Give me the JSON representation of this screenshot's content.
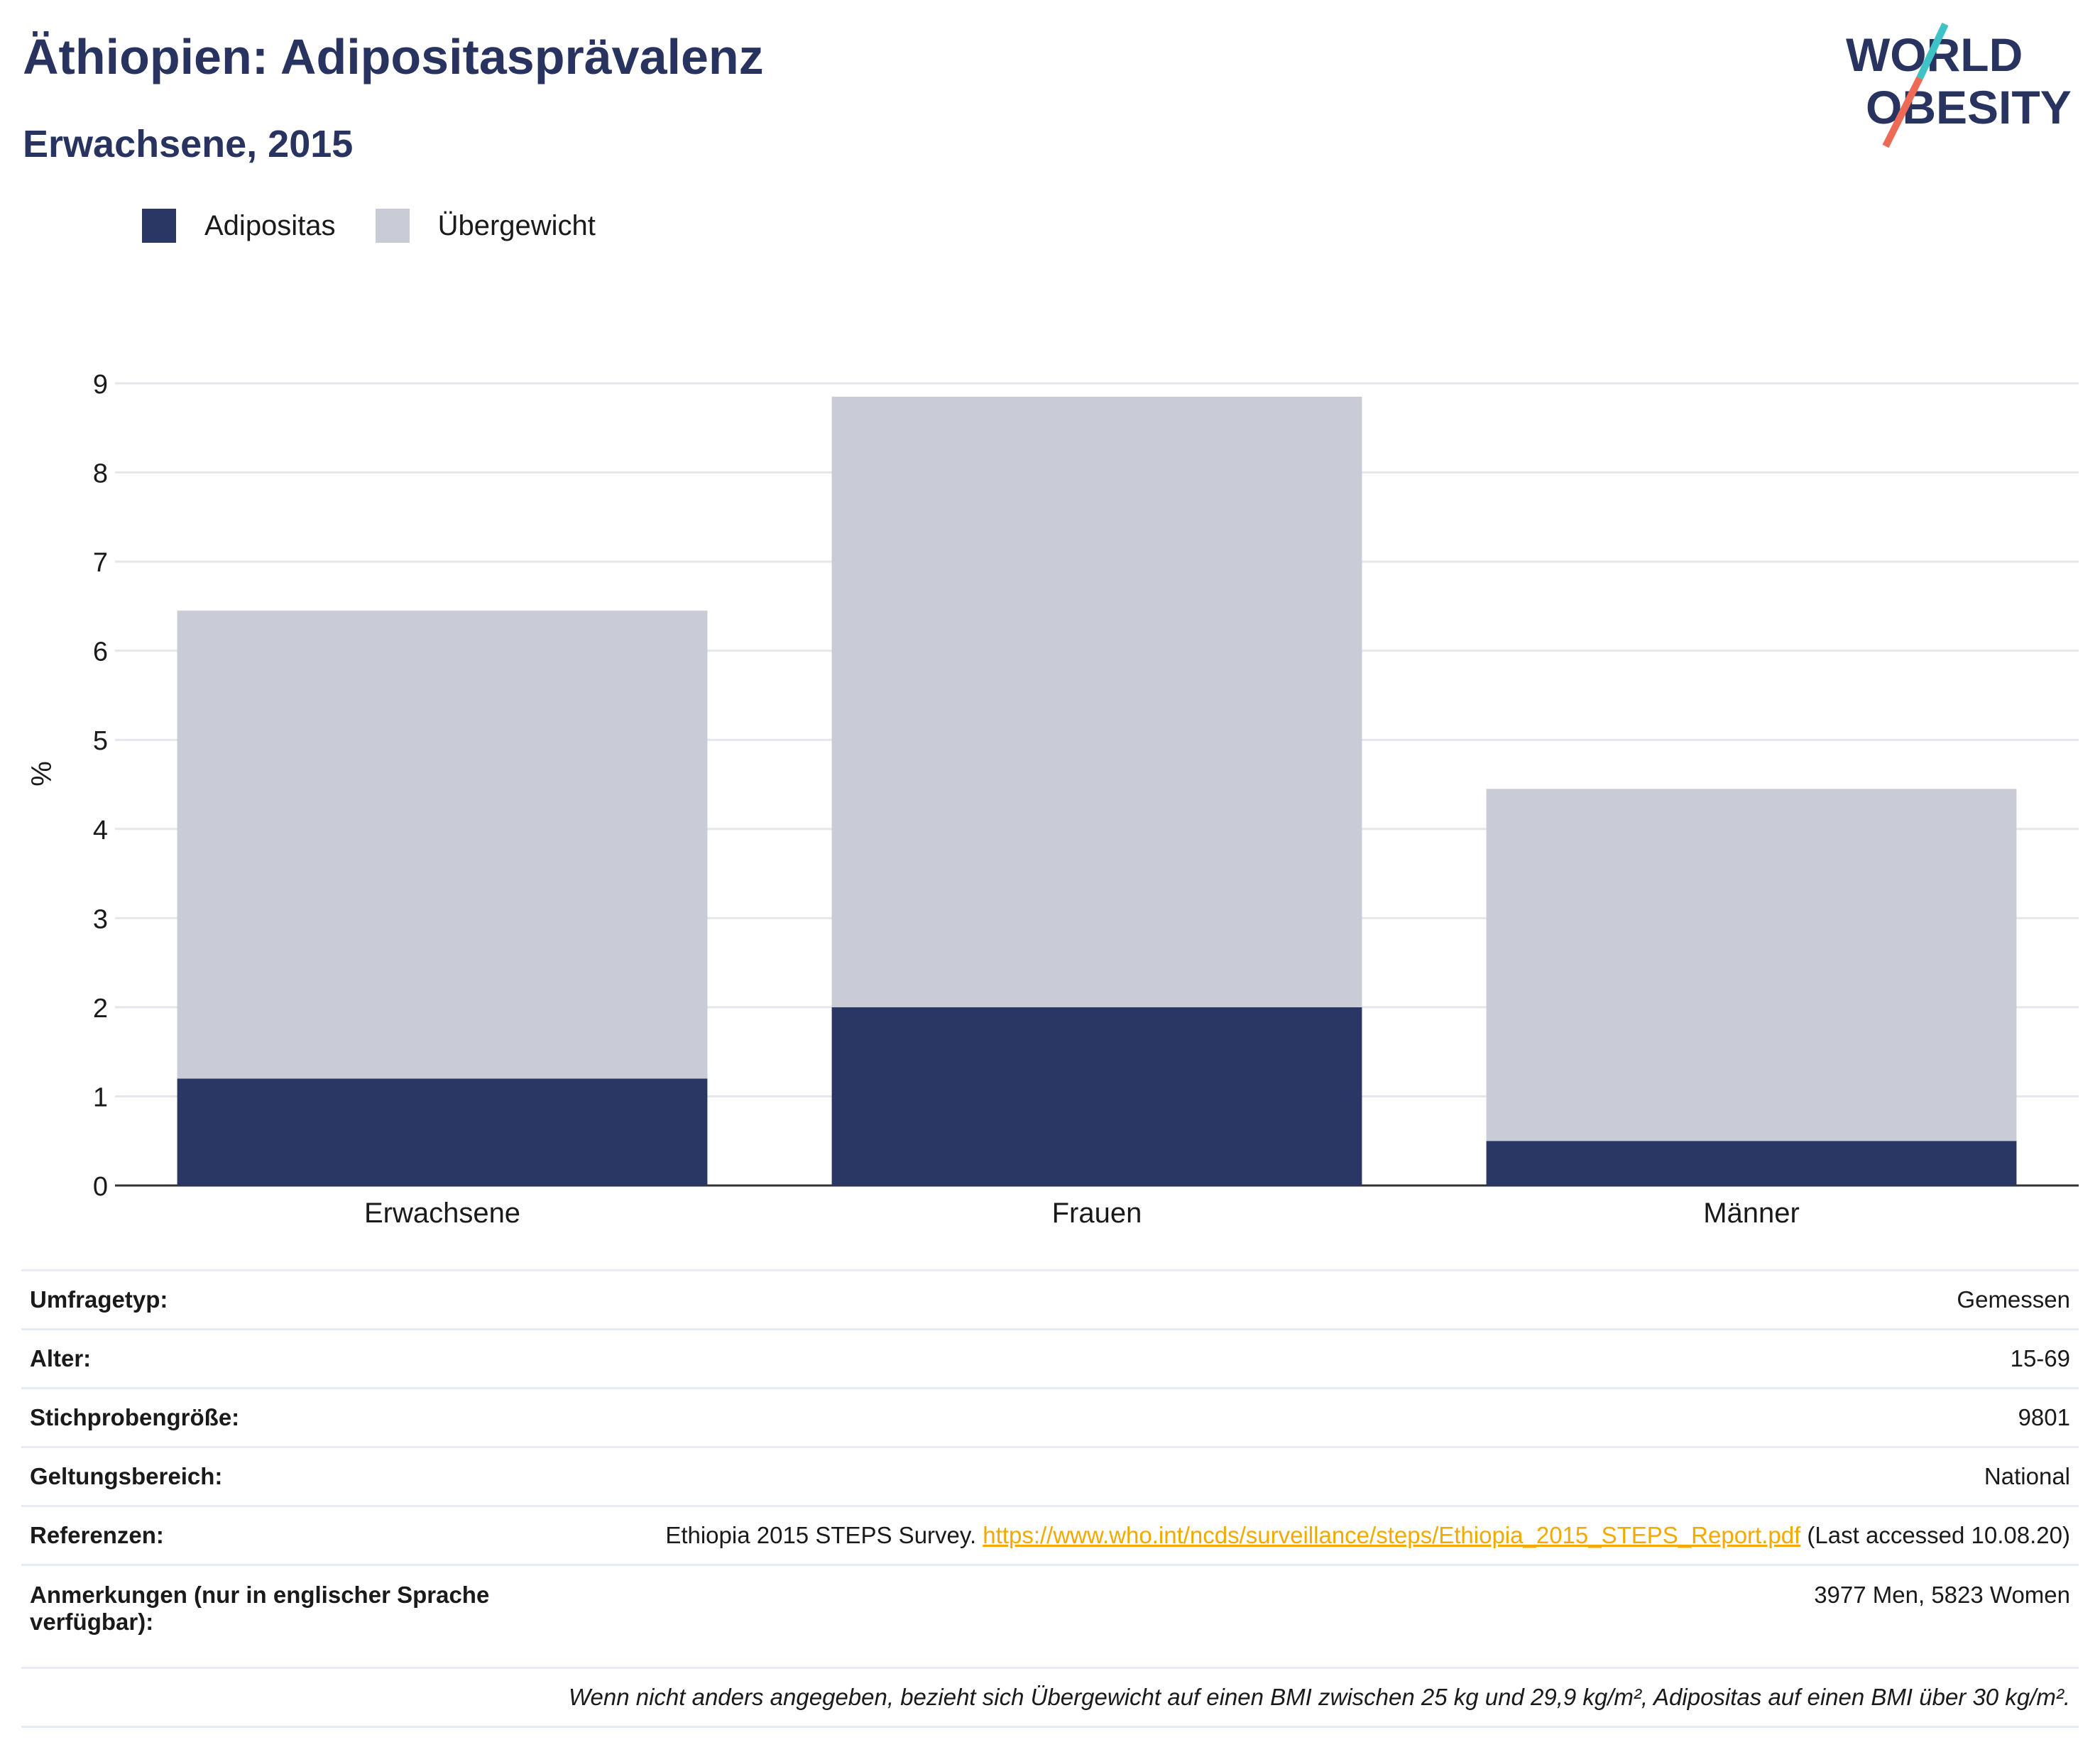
{
  "header": {
    "title": "Äthiopien: Adipositasprävalenz",
    "subtitle": "Erwachsene, 2015"
  },
  "logo": {
    "line1": "WORLD",
    "line2": "OBESITY",
    "colors": {
      "text": "#28335f",
      "slash_top": "#3ec2c5",
      "slash_bottom": "#ee6a55"
    }
  },
  "colors": {
    "adipositas": "#2a3663",
    "uebergewicht": "#c9cbd7",
    "title": "#28335f",
    "link": "#f2a900"
  },
  "chart_data": {
    "type": "bar",
    "stacked": true,
    "categories": [
      "Erwachsene",
      "Frauen",
      "Männer"
    ],
    "series": [
      {
        "name": "Adipositas",
        "values": [
          1.2,
          2.0,
          0.5
        ],
        "color": "#2a3663"
      },
      {
        "name": "Übergewicht",
        "values": [
          5.25,
          6.85,
          3.95
        ],
        "color": "#c9cbd7"
      }
    ],
    "ylabel": "%",
    "ylim": [
      0,
      9
    ],
    "yticks": [
      "0",
      "1",
      "2",
      "3",
      "4",
      "5",
      "6",
      "7",
      "8",
      "9"
    ],
    "grid": true,
    "legend_position": "top-left"
  },
  "meta": {
    "survey_type_label": "Umfragetyp:",
    "survey_type_value": "Gemessen",
    "age_label": "Alter:",
    "age_value": "15-69",
    "sample_label": "Stichprobengröße:",
    "sample_value": "9801",
    "scope_label": "Geltungsbereich:",
    "scope_value": "National",
    "refs_label": "Referenzen:",
    "refs_prefix": "Ethiopia 2015 STEPS Survey. ",
    "refs_link": "https://www.who.int/ncds/surveillance/steps/Ethiopia_2015_STEPS_Report.pdf",
    "refs_suffix": " (Last accessed 10.08.20)",
    "notes_label": "Anmerkungen (nur in englischer Sprache verfügbar):",
    "notes_value": "3977 Men, 5823 Women",
    "footnote": "Wenn nicht anders angegeben, bezieht sich Übergewicht auf einen BMI zwischen 25 kg und 29,9 kg/m², Adipositas auf einen BMI über 30 kg/m²."
  }
}
